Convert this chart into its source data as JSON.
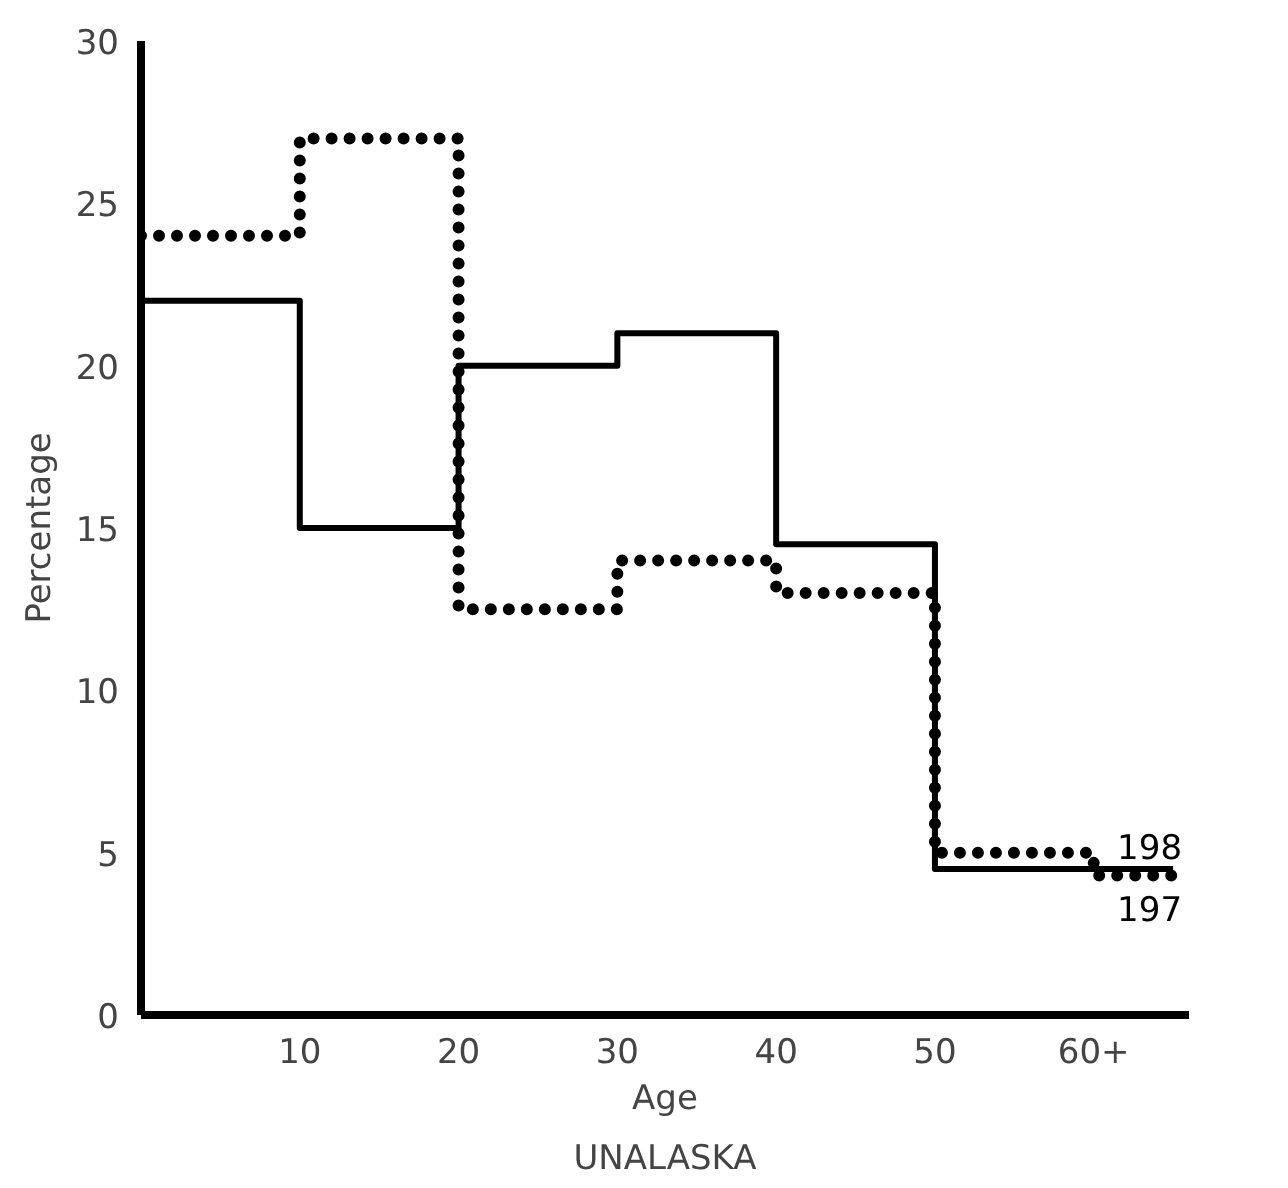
{
  "chart_data": {
    "type": "step",
    "title": "UNALASKA",
    "xlabel": "Age",
    "ylabel": "Percentage",
    "xlim": [
      0,
      66
    ],
    "ylim": [
      0,
      30
    ],
    "xticks": [
      10,
      20,
      30,
      40,
      50,
      {
        "value": 60,
        "label": "60+"
      }
    ],
    "yticks": [
      0,
      5,
      10,
      15,
      20,
      25,
      30
    ],
    "grid": false,
    "series": [
      {
        "name": "197",
        "color": "#000000",
        "line_style": "solid",
        "x": [
          0,
          10,
          20,
          30,
          40,
          50,
          65
        ],
        "values": [
          22,
          15,
          20,
          21,
          14.5,
          4.5,
          4.5
        ]
      },
      {
        "name": "198",
        "color": "#000000",
        "line_style": "dotted",
        "x": [
          0,
          10,
          20,
          30,
          40,
          50,
          60,
          65
        ],
        "values": [
          24,
          27,
          12.5,
          14,
          13,
          5,
          4.3,
          4.3
        ]
      }
    ]
  }
}
